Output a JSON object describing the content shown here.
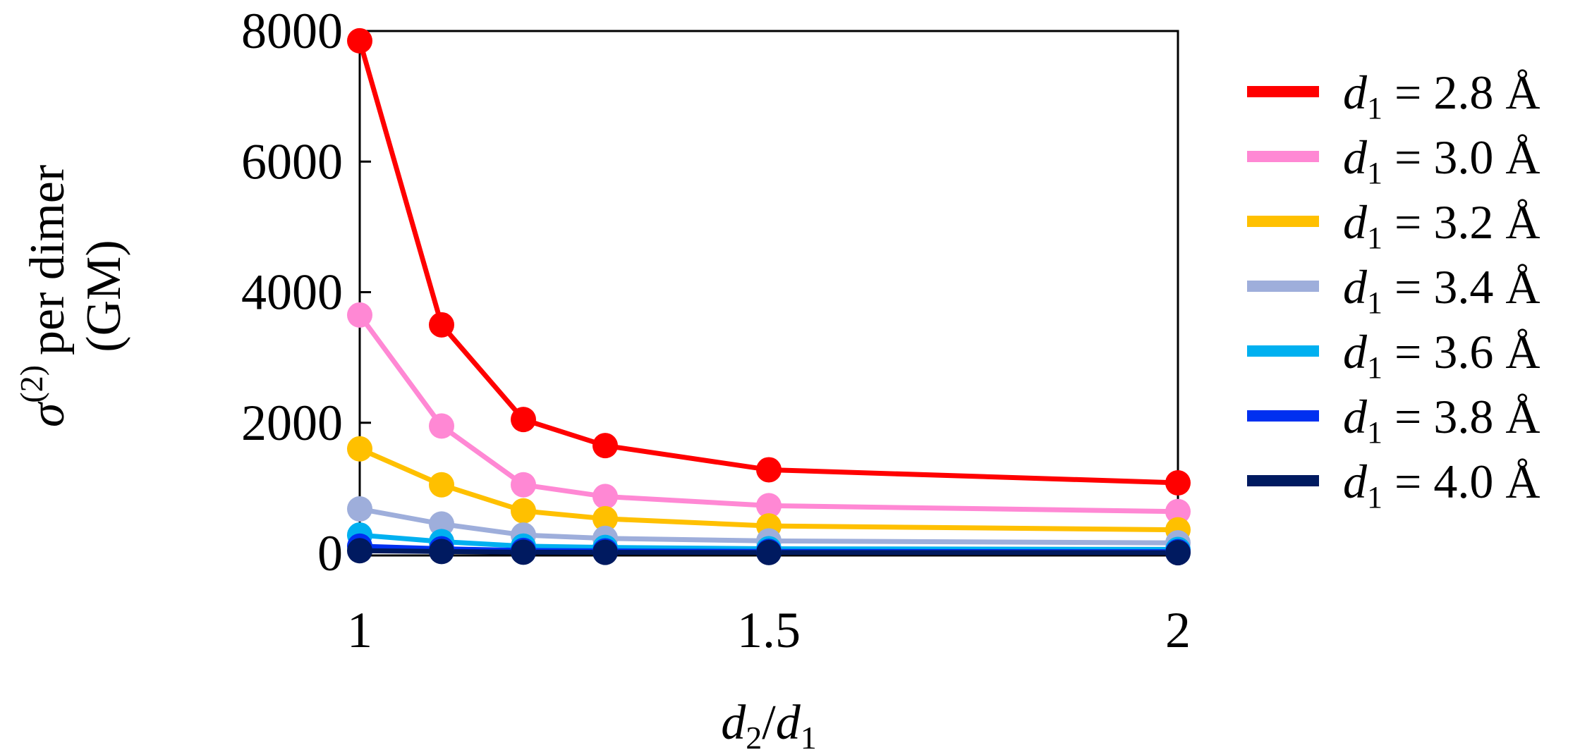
{
  "chart_data": {
    "type": "line",
    "xlabel": {
      "var_num": "d",
      "sub_num": "2",
      "slash": "/",
      "var_den": "d",
      "sub_den": "1"
    },
    "ylabel": {
      "line1_symbol": "σ",
      "line1_sup": "(2)",
      "line1_text": "per dimer",
      "line2": "(GM)"
    },
    "xlim": [
      1,
      2
    ],
    "ylim": [
      0,
      8000
    ],
    "x_ticks": [
      1,
      1.5,
      2
    ],
    "x_tick_labels": [
      "1",
      "1.5",
      "2"
    ],
    "y_ticks": [
      0,
      2000,
      4000,
      6000,
      8000
    ],
    "y_tick_labels": [
      "0",
      "2000",
      "4000",
      "6000",
      "8000"
    ],
    "grid": false,
    "legend_position": "right",
    "x": [
      1.0,
      1.1,
      1.2,
      1.3,
      1.5,
      2.0
    ],
    "series": [
      {
        "var": "d",
        "sub": "1",
        "label": " = 2.8 Å",
        "color": "#ff0000",
        "values": [
          7850,
          3500,
          2050,
          1650,
          1280,
          1080
        ]
      },
      {
        "var": "d",
        "sub": "1",
        "label": " = 3.0 Å",
        "color": "#ff88d4",
        "values": [
          3650,
          1950,
          1050,
          870,
          730,
          640
        ]
      },
      {
        "var": "d",
        "sub": "1",
        "label": " = 3.2 Å",
        "color": "#ffc000",
        "values": [
          1600,
          1050,
          650,
          530,
          420,
          360
        ]
      },
      {
        "var": "d",
        "sub": "1",
        "label": " = 3.4 Å",
        "color": "#9eaedb",
        "values": [
          680,
          450,
          280,
          230,
          190,
          160
        ]
      },
      {
        "var": "d",
        "sub": "1",
        "label": " = 3.6 Å",
        "color": "#00b0f0",
        "values": [
          280,
          180,
          110,
          90,
          70,
          60
        ]
      },
      {
        "var": "d",
        "sub": "1",
        "label": " = 3.8 Å",
        "color": "#0030f0",
        "values": [
          110,
          70,
          45,
          38,
          30,
          25
        ]
      },
      {
        "var": "d",
        "sub": "1",
        "label": " = 4.0 Å",
        "color": "#001a60",
        "values": [
          40,
          28,
          18,
          15,
          12,
          10
        ]
      }
    ]
  }
}
